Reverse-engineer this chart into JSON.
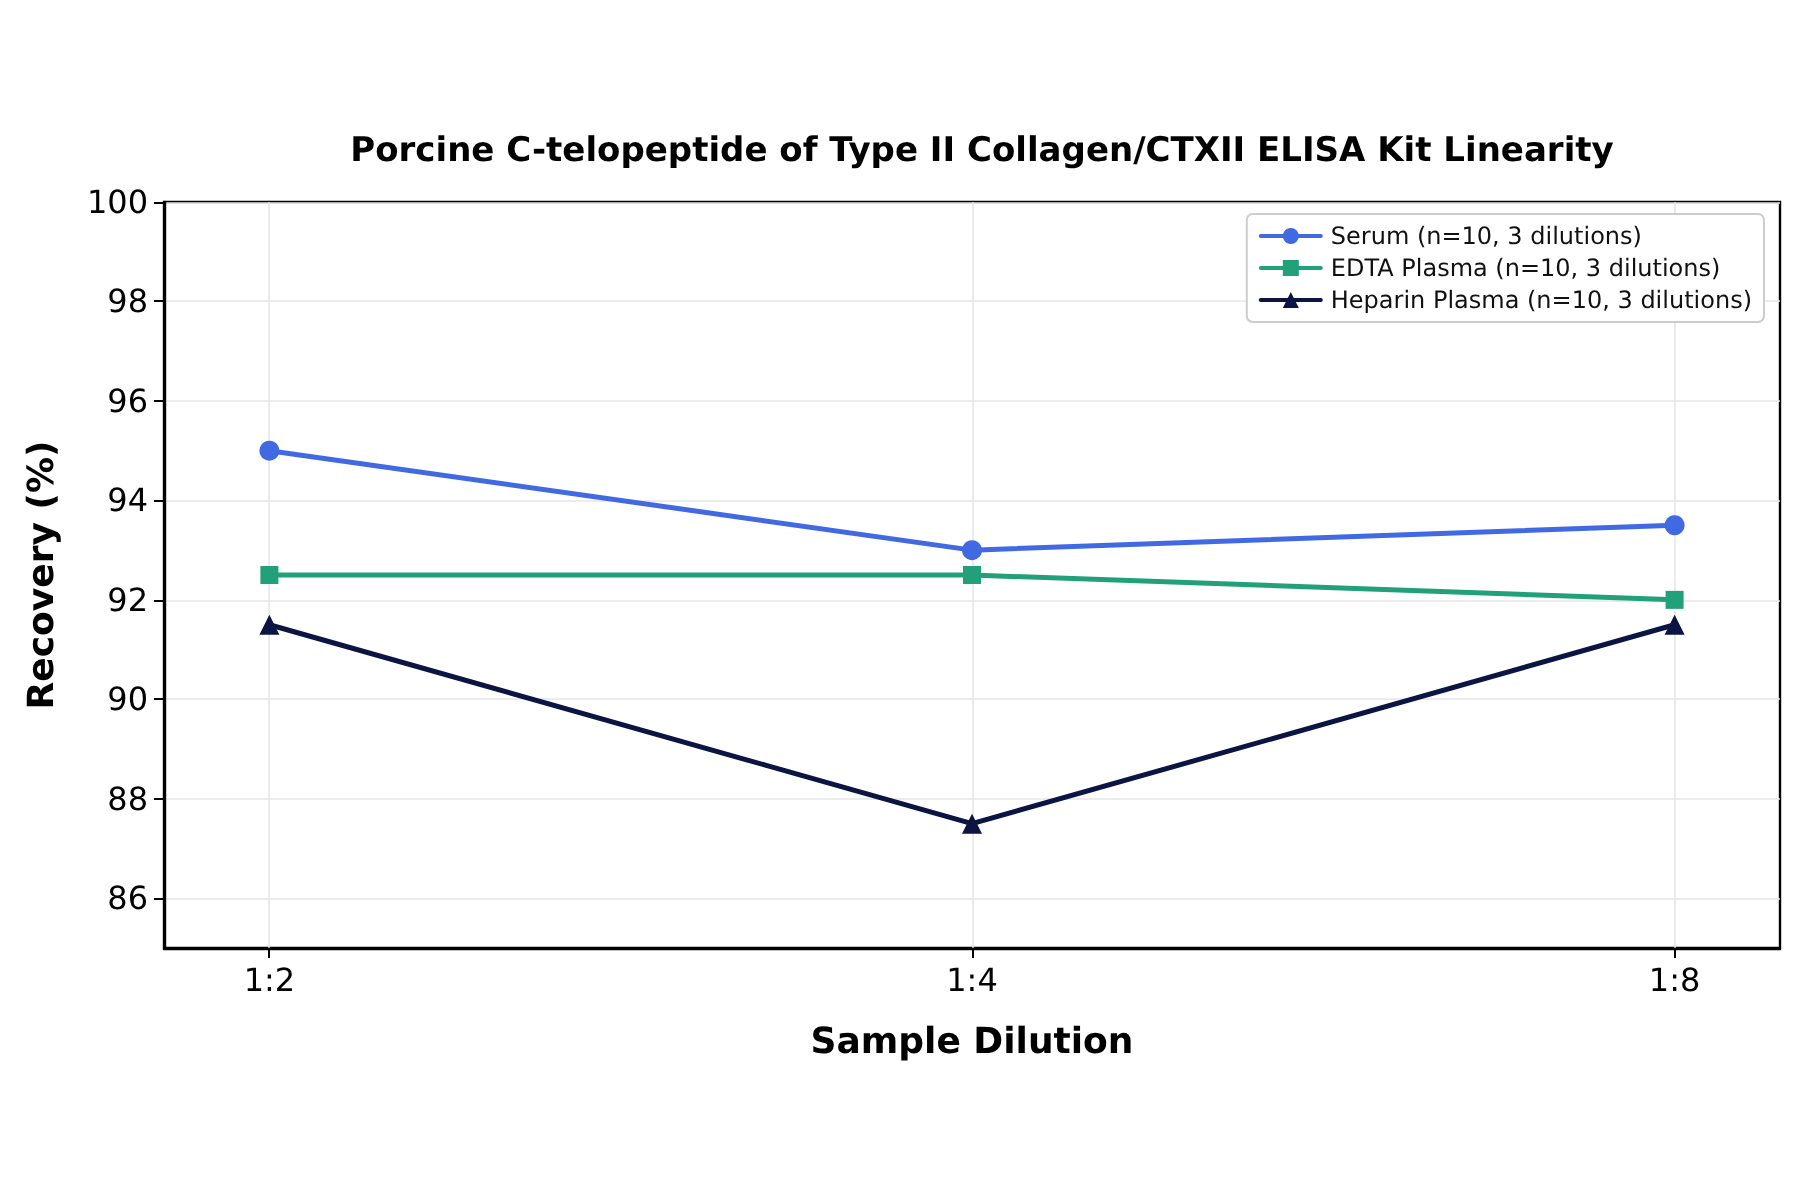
{
  "chart_data": {
    "type": "line",
    "title": "Porcine C-telopeptide of Type II Collagen/CTXII ELISA Kit Linearity",
    "xlabel": "Sample Dilution",
    "ylabel": "Recovery (%)",
    "categories": [
      "1:2",
      "1:4",
      "1:8"
    ],
    "series": [
      {
        "name": "Serum (n=10, 3 dilutions)",
        "color": "#4169e1",
        "marker": "circle",
        "values": [
          95,
          93,
          93.5
        ]
      },
      {
        "name": "EDTA Plasma (n=10, 3 dilutions)",
        "color": "#22a07a",
        "marker": "square",
        "values": [
          92.5,
          92.5,
          92
        ]
      },
      {
        "name": "Heparin Plasma (n=10, 3 dilutions)",
        "color": "#0b1442",
        "marker": "triangle",
        "values": [
          91.5,
          87.5,
          91.5
        ]
      }
    ],
    "ylim": [
      85,
      100
    ],
    "yticks": [
      86,
      88,
      90,
      92,
      94,
      96,
      98,
      100
    ],
    "grid": true,
    "legend": "top right",
    "line_style": "solid"
  }
}
